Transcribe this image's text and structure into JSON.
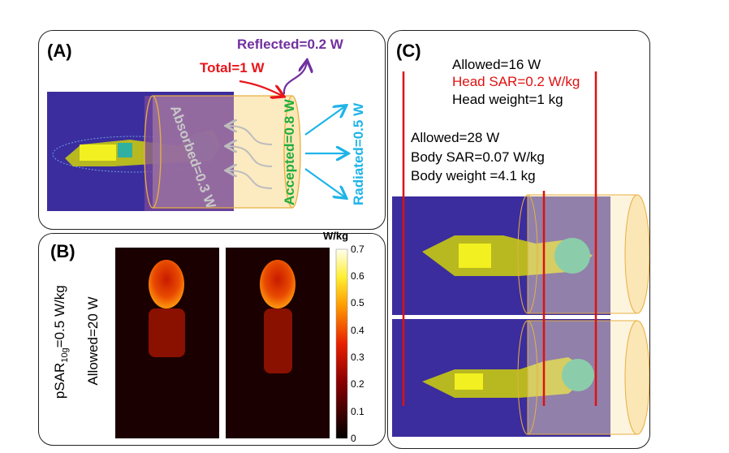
{
  "panel_a": {
    "label": "(A)",
    "total": "Total=1 W",
    "reflected": "Reflected=0.2 W",
    "accepted": "Accepted=0.8 W",
    "radiated": "Radiated=0.5 W",
    "absorbed": "Absorbed=0.3 W"
  },
  "panel_b": {
    "label": "(B)",
    "psar_prefix": "pSAR",
    "psar_sub": "10g",
    "psar_value": "=0.5 W/kg",
    "allowed": "Allowed=20 W",
    "colorbar": {
      "unit": "W/kg",
      "ticks": [
        "0.7",
        "0.6",
        "0.5",
        "0.4",
        "0.3",
        "0.2",
        "0.1",
        "0"
      ]
    }
  },
  "panel_c": {
    "label": "(C)",
    "head_allowed": "Allowed=16 W",
    "head_sar": "Head SAR=0.2 W/kg",
    "head_weight": "Head weight=1 kg",
    "body_allowed": "Allowed=28 W",
    "body_sar": "Body SAR=0.07 W/kg",
    "body_weight": "Body weight =4.1 kg"
  },
  "colors": {
    "total": "#e8161b",
    "reflected": "#7030a0",
    "accepted": "#1fae3c",
    "radiated": "#1eb4e8",
    "absorbed": "#c8c8c8",
    "bg": "#3b2d9e"
  }
}
